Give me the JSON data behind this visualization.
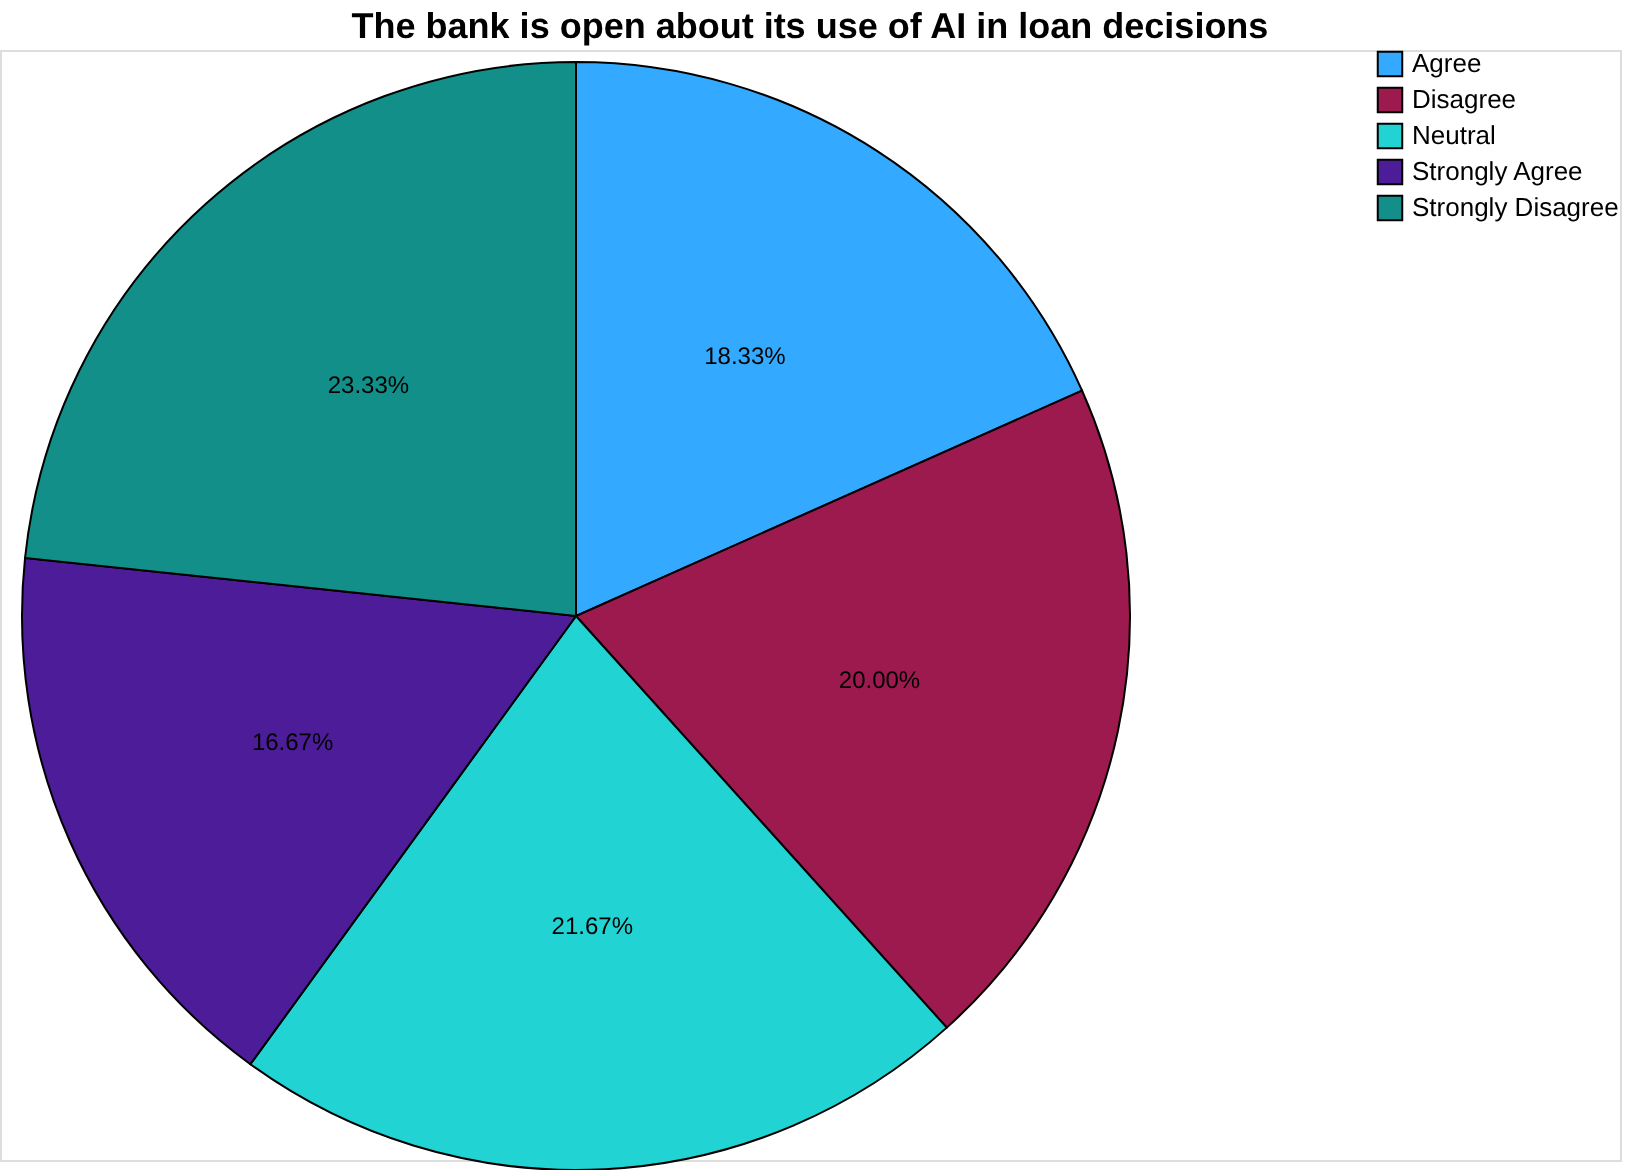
{
  "chart_data": {
    "type": "pie",
    "title": "The bank is open about its use of AI in loan decisions",
    "categories": [
      "Agree",
      "Disagree",
      "Neutral",
      "Strongly Agree",
      "Strongly Disagree"
    ],
    "values": [
      18.33,
      20.0,
      21.67,
      16.67,
      23.33
    ],
    "colors": [
      "#33aaff",
      "#9c1a4e",
      "#22d3d3",
      "#4d1c99",
      "#138f8a"
    ],
    "value_labels": [
      "18.33%",
      "20.00%",
      "21.67%",
      "16.67%",
      "23.33%"
    ],
    "legend": "top right"
  }
}
